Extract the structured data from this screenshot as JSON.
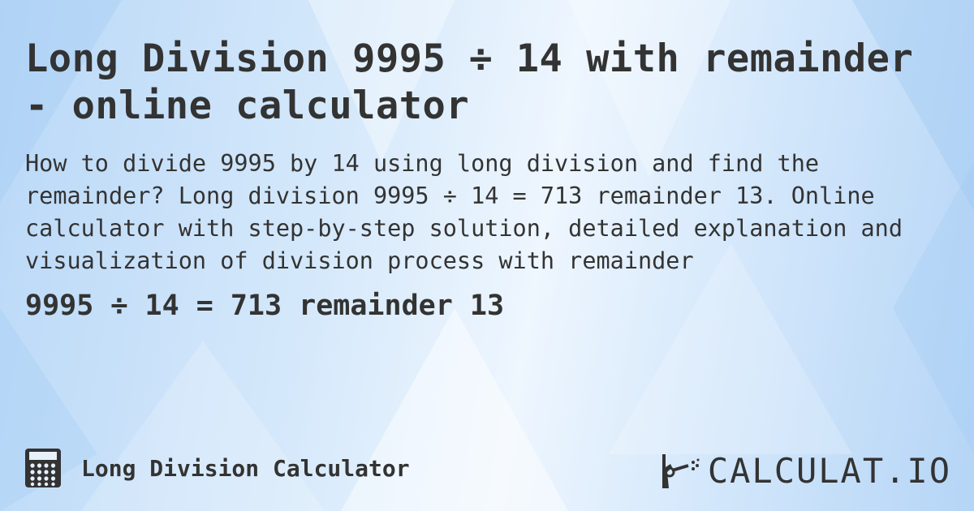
{
  "title": "Long Division 9995 ÷ 14 with remainder - online calculator",
  "description": "How to divide 9995 by 14 using long division and find the remainder? Long division 9995 ÷ 14 = 713 remainder 13. Online calculator with step-by-step solution, detailed explanation and visualization of division process with remainder",
  "result": "9995 ÷ 14 = 713 remainder 13",
  "footer": {
    "calculator_name": "Long Division Calculator",
    "calculator_icon": "calculator-icon"
  },
  "brand": {
    "name": "CALCULAT.IO",
    "logo_icon": "hand-wand-icon"
  },
  "colors": {
    "text": "#333333",
    "background": "#d6e9fb"
  }
}
